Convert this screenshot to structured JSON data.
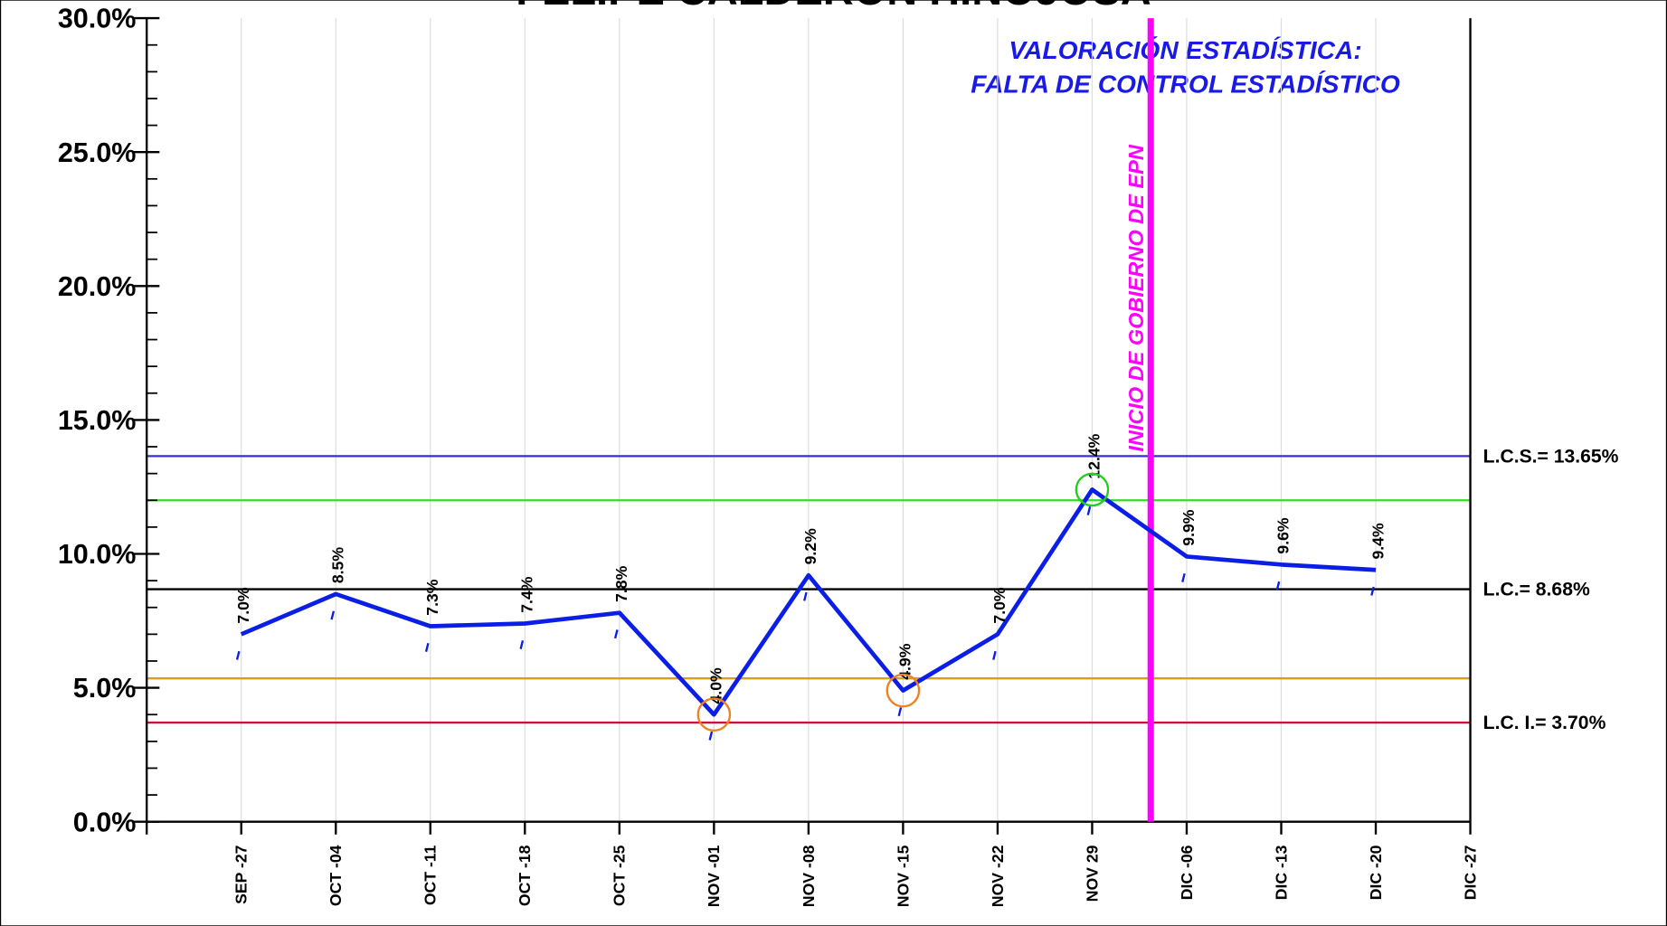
{
  "chart_data": {
    "type": "line",
    "title": "FELIPE CALDERÓN HINOJOSA",
    "annotation": [
      "VALORACIÓN ESTADÍSTICA:",
      "FALTA DE CONTROL ESTADÍSTICO"
    ],
    "categories": [
      "SEP -27",
      "OCT -04",
      "OCT -11",
      "OCT -18",
      "OCT -25",
      "NOV -01",
      "NOV -08",
      "NOV -15",
      "NOV -22",
      "NOV 29",
      "DIC -06",
      "DIC -13",
      "DIC -20",
      "DIC -27"
    ],
    "series": [
      {
        "color": "#0a1ee6",
        "values": [
          7.0,
          8.5,
          7.3,
          7.4,
          7.8,
          4.0,
          9.2,
          4.9,
          7.0,
          12.4,
          9.9,
          9.6,
          9.4,
          null
        ],
        "value_labels": [
          "7.0%",
          "8.5%",
          "7.3%",
          "7.4%",
          "7.8%",
          "4.0%",
          "9.2%",
          "4.9%",
          "7.0%",
          "12.4%",
          "9.9%",
          "9.6%",
          "9.4%",
          null
        ]
      }
    ],
    "ylim": [
      0,
      30
    ],
    "yticks": [
      {
        "value": 0,
        "label": "0.0%"
      },
      {
        "value": 5,
        "label": "5.0%"
      },
      {
        "value": 10,
        "label": "10.0%"
      },
      {
        "value": 15,
        "label": "15.0%"
      },
      {
        "value": 20,
        "label": "20.0%"
      },
      {
        "value": 25,
        "label": "25.0%"
      },
      {
        "value": 30,
        "label": "30.0%"
      }
    ],
    "yminorticks": [
      1,
      2,
      3,
      4,
      6,
      7,
      8,
      9,
      11,
      12,
      13,
      14,
      16,
      17,
      18,
      19,
      21,
      22,
      23,
      24,
      26,
      27,
      28,
      29
    ],
    "grid": true,
    "reference_lines": [
      {
        "value": 13.65,
        "color": "#3a2fc8",
        "label": "L.C.S.= 13.65%"
      },
      {
        "value": 12.0,
        "color": "#33dd22"
      },
      {
        "value": 8.68,
        "color": "#000000",
        "label": "L.C.= 8.68%"
      },
      {
        "value": 5.35,
        "color": "#d4a017"
      },
      {
        "value": 3.7,
        "color": "#d0103a",
        "label": "L.C. I.= 3.70%"
      }
    ],
    "event_line": {
      "label": "INICIO DE GOBIERNO DE EPN",
      "color": "#ff00ff",
      "after_category": 9
    },
    "highlights": [
      {
        "index": 5,
        "color": "#f08020"
      },
      {
        "index": 7,
        "color": "#f08020"
      },
      {
        "index": 9,
        "color": "#22cc22"
      }
    ]
  }
}
